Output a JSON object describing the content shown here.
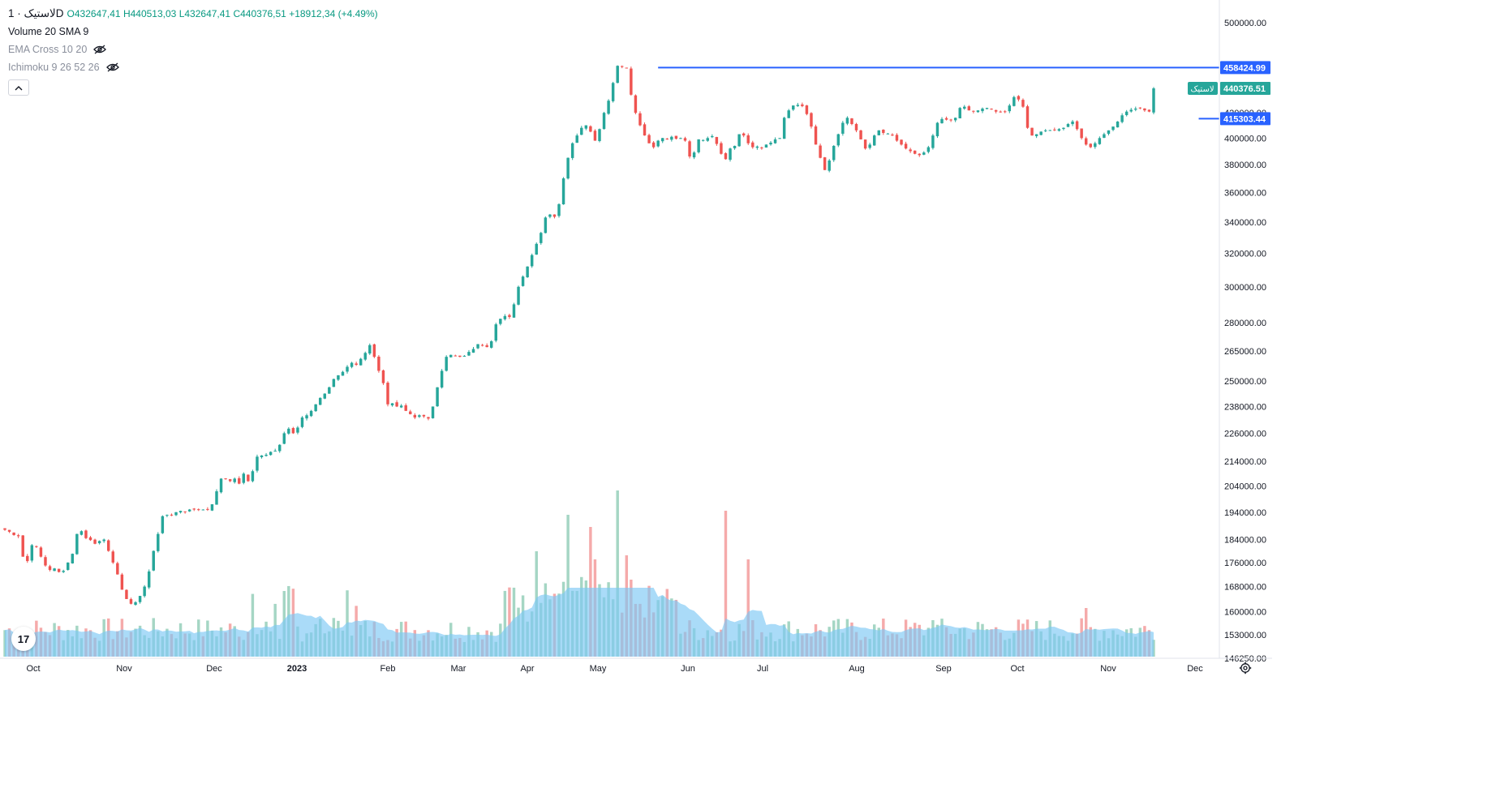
{
  "header": {
    "symbol_line": "لاستیک · 1D",
    "open_label": "O",
    "open": "432647,41",
    "high_label": "H",
    "high": "440513,03",
    "low_label": "L",
    "low": "432647,41",
    "close_label": "C",
    "close": "440376,51",
    "change": "+18912,34 (+4.49%)"
  },
  "indicators": [
    {
      "label": "Volume 20 SMA 9",
      "hidden": false
    },
    {
      "label": "EMA Cross 10 20",
      "hidden": true,
      "icon": "eye-crossed-icon"
    },
    {
      "label": "Ichimoku 9 26 52 26",
      "hidden": true,
      "icon": "eye-crossed-icon"
    }
  ],
  "colors": {
    "up": "#26a69a",
    "down": "#ef5350",
    "vol_up": "#a5d6c4",
    "vol_down": "#f5aaaa",
    "vol_sma_fill": "#7dc8f5",
    "hline": "#2962ff",
    "price_tag": "#26a69a"
  },
  "price_axis": {
    "ticks": [
      "500000.00",
      "420000.00",
      "400000.00",
      "380000.00",
      "360000.00",
      "340000.00",
      "320000.00",
      "300000.00",
      "280000.00",
      "265000.00",
      "250000.00",
      "238000.00",
      "226000.00",
      "214000.00",
      "204000.00",
      "194000.00",
      "184000.00",
      "176000.00",
      "168000.00",
      "160000.00",
      "153000.00",
      "146250.00"
    ],
    "current_price": "440376.51",
    "current_symbol": "لاستیک",
    "hlines": [
      {
        "label": "458424.99",
        "value": 458424.99
      },
      {
        "label": "415303.44",
        "value": 415303.44
      }
    ]
  },
  "time_axis": {
    "labels": [
      "Oct",
      "Nov",
      "Dec",
      "2023",
      "Feb",
      "Mar",
      "Apr",
      "May",
      "Jun",
      "Jul",
      "Aug",
      "Sep",
      "Oct",
      "Nov",
      "Dec"
    ]
  },
  "logo_text": "17",
  "chart_data": {
    "type": "candlestick",
    "scale": "log",
    "interval": "1D",
    "title": "لاستیک",
    "ylim": [
      146250,
      500000
    ],
    "x": [
      "Oct",
      "Nov",
      "Dec",
      "2023",
      "Feb",
      "Mar",
      "Apr",
      "May",
      "Jun",
      "Jul",
      "Aug",
      "Sep",
      "Oct",
      "Nov",
      "Dec"
    ],
    "close_series": [
      187500,
      186800,
      185600,
      185200,
      178000,
      176500,
      182000,
      181500,
      178000,
      175000,
      173500,
      174000,
      172800,
      173200,
      176000,
      179000,
      186000,
      187000,
      184500,
      183800,
      182500,
      183500,
      184000,
      180000,
      176000,
      172000,
      167000,
      164000,
      162500,
      163000,
      165000,
      168000,
      173000,
      180000,
      186000,
      192500,
      193000,
      192800,
      194000,
      194500,
      194200,
      195000,
      195000,
      195100,
      195000,
      195000,
      197000,
      202000,
      207000,
      206800,
      206000,
      207000,
      205000,
      209000,
      206000,
      210000,
      216000,
      216500,
      216800,
      218000,
      218500,
      221000,
      226000,
      228000,
      226000,
      228500,
      233000,
      234000,
      236000,
      239000,
      242000,
      244000,
      247000,
      251000,
      252800,
      254500,
      257000,
      259000,
      258000,
      261000,
      264000,
      268000,
      262000,
      255000,
      249000,
      239000,
      239500,
      238000,
      238400,
      236000,
      234500,
      233000,
      234000,
      233500,
      232500,
      238000,
      247000,
      255000,
      262000,
      263000,
      262500,
      262000,
      262500,
      264500,
      266000,
      268500,
      268000,
      267000,
      270000,
      279000,
      282000,
      283500,
      283000,
      290000,
      300000,
      306000,
      312000,
      319000,
      326000,
      333000,
      343000,
      345000,
      343500,
      352000,
      370000,
      385000,
      396000,
      402000,
      408000,
      410000,
      405000,
      398000,
      407000,
      420000,
      430000,
      445000,
      460000,
      459000,
      458000,
      435000,
      420000,
      410000,
      402000,
      396000,
      393000,
      398000,
      400000,
      399000,
      401000,
      399500,
      400000,
      398000,
      386000,
      389000,
      399000,
      398500,
      400000,
      401500,
      395500,
      388000,
      384000,
      392000,
      394000,
      403000,
      402000,
      396000,
      393000,
      393500,
      392500,
      395000,
      396500,
      399000,
      400000,
      416000,
      422000,
      426000,
      426500,
      425500,
      419000,
      409000,
      395000,
      385000,
      376000,
      383000,
      394000,
      403000,
      412000,
      416000,
      411000,
      406000,
      399000,
      392000,
      395000,
      402000,
      406000,
      404000,
      403500,
      402000,
      398000,
      395000,
      392000,
      390000,
      388000,
      387000,
      389000,
      393000,
      402000,
      412000,
      415000,
      414500,
      414000,
      416000,
      424000,
      425000,
      422000,
      421000,
      422000,
      423500,
      424000,
      423000,
      421000,
      420500,
      421000,
      426000,
      433000,
      431000,
      425000,
      408000,
      402000,
      403000,
      405000,
      406000,
      406200,
      406500,
      407000,
      408000,
      411000,
      413000,
      407000,
      400000,
      395000,
      393000,
      396000,
      400000,
      403000,
      406000,
      409000,
      413000,
      418000,
      421000,
      422500,
      423500,
      424000,
      422000,
      421000,
      440376.51
    ],
    "volume_peak_labels": "not printed"
  }
}
